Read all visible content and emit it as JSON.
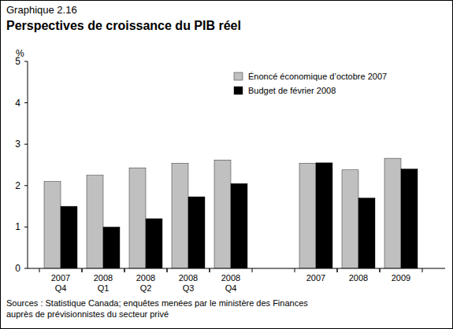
{
  "chart_data": {
    "type": "bar",
    "label": "Graphique 2.16",
    "title": "Perspectives de croissance du PIB réel",
    "y_label": "%",
    "categories": [
      "2007 Q4",
      "2008 Q1",
      "2008 Q2",
      "2008 Q3",
      "2008 Q4",
      null,
      "2007",
      "2008",
      "2009"
    ],
    "series": [
      {
        "name": "Énoncé économique d’octobre 2007",
        "color": "#c0c0c0",
        "values": [
          2.1,
          2.25,
          2.43,
          2.54,
          2.62,
          null,
          2.54,
          2.38,
          2.66
        ]
      },
      {
        "name": "Budget de février 2008",
        "color": "#000000",
        "values": [
          1.5,
          1.0,
          1.2,
          1.73,
          2.05,
          null,
          2.55,
          1.7,
          2.4
        ]
      }
    ],
    "ylim": [
      0,
      5
    ],
    "yticks": [
      0,
      1,
      2,
      3,
      4,
      5
    ],
    "legend": "top-right",
    "source": [
      "Sources : Statistique Canada; enquêtes menées par le ministère des Finances",
      "auprès de prévisionnistes du secteur privé"
    ]
  }
}
